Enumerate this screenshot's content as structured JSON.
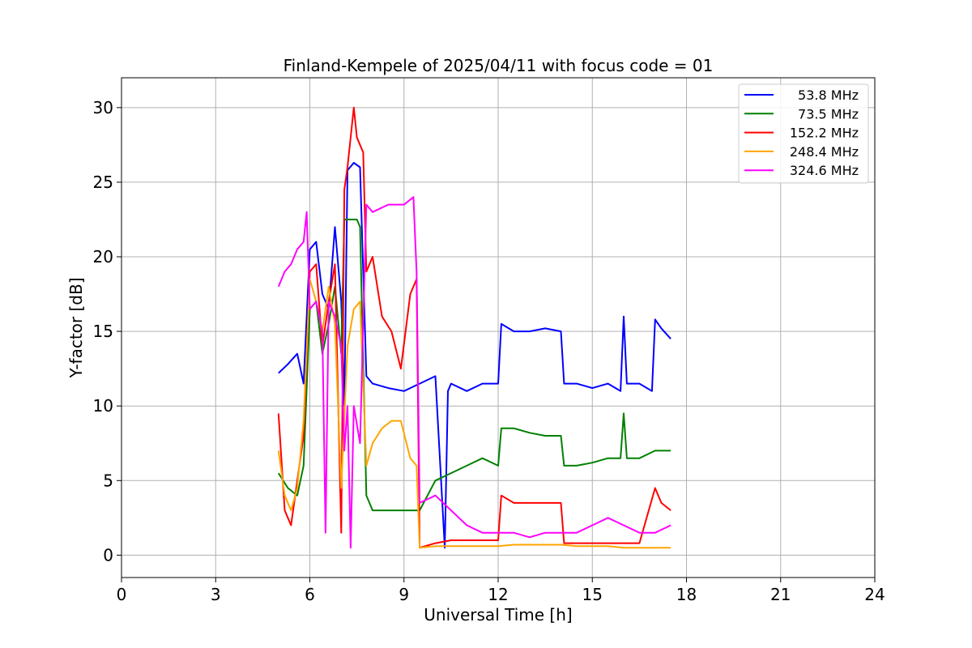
{
  "chart_data": {
    "type": "line",
    "title": "Finland-Kempele of 2025/04/11 with focus code = 01",
    "xlabel": "Universal Time [h]",
    "ylabel": "Y-factor [dB]",
    "xlim": [
      0,
      24
    ],
    "ylim": [
      -1.5,
      32
    ],
    "xticks": [
      0,
      3,
      6,
      9,
      12,
      15,
      18,
      21,
      24
    ],
    "xtick_labels": [
      "0",
      "3",
      "6",
      "9",
      "12",
      "15",
      "18",
      "21",
      "24"
    ],
    "yticks": [
      0,
      5,
      10,
      15,
      20,
      25,
      30
    ],
    "ytick_labels": [
      "0",
      "5",
      "10",
      "15",
      "20",
      "25",
      "30"
    ],
    "grid": true,
    "legend_position": "top-right",
    "series": [
      {
        "name": "53.8 MHz",
        "color": "#0000ff",
        "x": [
          5.0,
          5.3,
          5.6,
          5.8,
          6.0,
          6.2,
          6.4,
          6.6,
          6.8,
          7.0,
          7.1,
          7.2,
          7.4,
          7.6,
          7.8,
          8.0,
          8.5,
          9.0,
          9.5,
          10.0,
          10.3,
          10.4,
          10.5,
          11.0,
          11.5,
          12.0,
          12.1,
          12.5,
          13.0,
          13.5,
          14.0,
          14.1,
          14.5,
          15.0,
          15.5,
          15.9,
          16.0,
          16.1,
          16.5,
          16.9,
          17.0,
          17.2,
          17.5
        ],
        "y": [
          12.2,
          12.8,
          13.5,
          11.5,
          20.5,
          21.0,
          17.5,
          16.5,
          22.0,
          17.0,
          10.0,
          25.8,
          26.3,
          26.0,
          12.0,
          11.5,
          11.2,
          11.0,
          11.5,
          12.0,
          0.5,
          11.0,
          11.5,
          11.0,
          11.5,
          11.5,
          15.5,
          15.0,
          15.0,
          15.2,
          15.0,
          11.5,
          11.5,
          11.2,
          11.5,
          11.0,
          16.0,
          11.5,
          11.5,
          11.0,
          15.8,
          15.2,
          14.5
        ]
      },
      {
        "name": "73.5 MHz",
        "color": "#008000",
        "x": [
          5.0,
          5.3,
          5.6,
          5.8,
          6.0,
          6.2,
          6.4,
          6.6,
          6.8,
          7.0,
          7.1,
          7.3,
          7.5,
          7.6,
          7.8,
          8.0,
          8.5,
          9.0,
          9.5,
          10.0,
          10.5,
          11.0,
          11.5,
          12.0,
          12.1,
          12.5,
          13.0,
          13.5,
          14.0,
          14.1,
          14.5,
          15.0,
          15.5,
          15.9,
          16.0,
          16.1,
          16.5,
          17.0,
          17.5
        ],
        "y": [
          5.5,
          4.5,
          4.0,
          6.0,
          16.5,
          17.0,
          13.5,
          15.5,
          18.0,
          13.5,
          22.5,
          22.5,
          22.5,
          22.0,
          4.0,
          3.0,
          3.0,
          3.0,
          3.0,
          5.0,
          5.5,
          6.0,
          6.5,
          6.0,
          8.5,
          8.5,
          8.2,
          8.0,
          8.0,
          6.0,
          6.0,
          6.2,
          6.5,
          6.5,
          9.5,
          6.5,
          6.5,
          7.0,
          7.0
        ]
      },
      {
        "name": "152.2 MHz",
        "color": "#ff0000",
        "x": [
          5.0,
          5.2,
          5.4,
          5.6,
          5.8,
          6.0,
          6.2,
          6.4,
          6.6,
          6.8,
          7.0,
          7.1,
          7.2,
          7.3,
          7.4,
          7.5,
          7.7,
          7.8,
          8.0,
          8.3,
          8.6,
          8.9,
          9.2,
          9.4,
          9.5,
          10.0,
          10.5,
          11.0,
          11.5,
          12.0,
          12.1,
          12.5,
          13.0,
          13.5,
          14.0,
          14.1,
          14.5,
          15.0,
          15.5,
          16.0,
          16.5,
          17.0,
          17.2,
          17.5
        ],
        "y": [
          9.5,
          3.0,
          2.0,
          5.0,
          8.0,
          19.0,
          19.5,
          14.0,
          17.0,
          19.5,
          1.5,
          24.5,
          26.0,
          28.0,
          30.0,
          28.0,
          27.0,
          19.0,
          20.0,
          16.0,
          15.0,
          12.5,
          17.5,
          18.5,
          0.5,
          0.8,
          1.0,
          1.0,
          1.0,
          1.0,
          4.0,
          3.5,
          3.5,
          3.5,
          3.5,
          0.8,
          0.8,
          0.8,
          0.8,
          0.8,
          0.8,
          4.5,
          3.5,
          3.0
        ]
      },
      {
        "name": "248.4 MHz",
        "color": "#ffa500",
        "x": [
          5.0,
          5.2,
          5.4,
          5.6,
          5.8,
          6.0,
          6.2,
          6.4,
          6.6,
          6.8,
          7.0,
          7.2,
          7.4,
          7.6,
          7.8,
          8.0,
          8.3,
          8.6,
          8.9,
          9.2,
          9.4,
          9.5,
          10.0,
          10.5,
          11.0,
          11.5,
          12.0,
          12.5,
          13.0,
          13.5,
          14.0,
          14.5,
          15.0,
          15.5,
          16.0,
          16.5,
          17.0,
          17.5
        ],
        "y": [
          7.0,
          4.0,
          3.0,
          4.5,
          9.0,
          18.5,
          17.0,
          15.0,
          18.0,
          15.5,
          4.5,
          14.0,
          16.5,
          17.0,
          6.0,
          7.5,
          8.5,
          9.0,
          9.0,
          6.5,
          6.0,
          0.5,
          0.6,
          0.6,
          0.6,
          0.6,
          0.6,
          0.7,
          0.7,
          0.7,
          0.7,
          0.6,
          0.6,
          0.6,
          0.5,
          0.5,
          0.5,
          0.5
        ]
      },
      {
        "name": "324.6 MHz",
        "color": "#ff00ff",
        "x": [
          5.0,
          5.2,
          5.4,
          5.6,
          5.8,
          5.9,
          6.0,
          6.2,
          6.4,
          6.5,
          6.6,
          6.8,
          7.0,
          7.1,
          7.2,
          7.3,
          7.4,
          7.6,
          7.8,
          8.0,
          8.5,
          9.0,
          9.3,
          9.4,
          9.5,
          10.0,
          10.5,
          11.0,
          11.5,
          12.0,
          12.5,
          13.0,
          13.5,
          14.0,
          14.5,
          15.0,
          15.5,
          16.0,
          16.5,
          17.0,
          17.5
        ],
        "y": [
          18.0,
          19.0,
          19.5,
          20.5,
          21.0,
          23.0,
          16.5,
          17.0,
          15.0,
          1.5,
          17.0,
          16.0,
          14.0,
          7.0,
          10.0,
          0.5,
          10.0,
          7.5,
          23.5,
          23.0,
          23.5,
          23.5,
          24.0,
          19.0,
          3.5,
          4.0,
          3.0,
          2.0,
          1.5,
          1.5,
          1.5,
          1.2,
          1.5,
          1.5,
          1.5,
          2.0,
          2.5,
          2.0,
          1.5,
          1.5,
          2.0
        ]
      }
    ]
  }
}
